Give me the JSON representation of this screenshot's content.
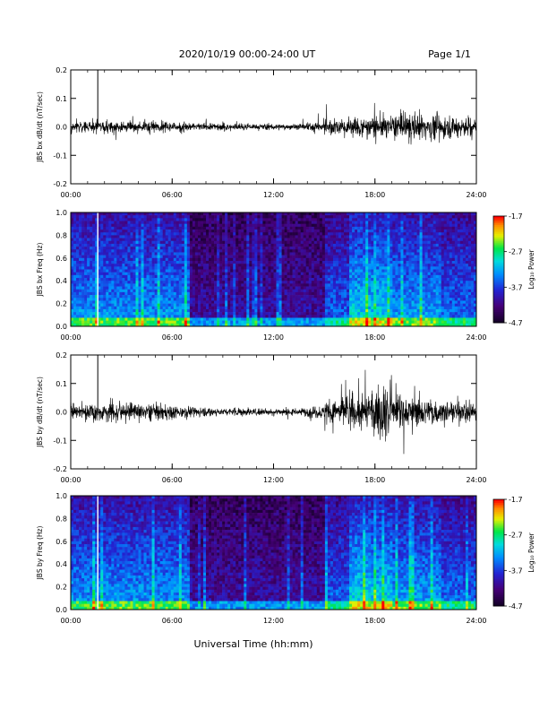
{
  "header": {
    "title": "2020/10/19  00:00-24:00 UT",
    "page": "Page 1/1"
  },
  "xlabel": "Universal Time (hh:mm)",
  "chart_data": [
    {
      "type": "line",
      "ylabel": "JBS bx dB/dt (nT/sec)",
      "xlim": [
        0,
        24
      ],
      "ylim": [
        -0.2,
        0.2
      ],
      "x_ticks": [
        "00:00",
        "06:00",
        "12:00",
        "18:00",
        "24:00"
      ],
      "y_ticks": [
        "0.2",
        "0.1",
        "0.0",
        "-0.1",
        "-0.2"
      ],
      "spike_hour": 1.6,
      "amplitude_by_hour": [
        0.018,
        0.02,
        0.022,
        0.018,
        0.022,
        0.018,
        0.016,
        0.013,
        0.013,
        0.012,
        0.011,
        0.01,
        0.01,
        0.01,
        0.015,
        0.025,
        0.03,
        0.035,
        0.04,
        0.04,
        0.045,
        0.04,
        0.035,
        0.035
      ]
    },
    {
      "type": "heatmap",
      "ylabel": "JBS bx Freq (Hz)",
      "xlim": [
        0,
        24
      ],
      "ylim": [
        0,
        1.0
      ],
      "x_ticks": [
        "00:00",
        "06:00",
        "12:00",
        "18:00",
        "24:00"
      ],
      "y_ticks": [
        "1.0",
        "0.8",
        "0.6",
        "0.4",
        "0.2",
        "0.0"
      ],
      "colorbar": {
        "label": "Log₁₀ Power",
        "ticks": [
          "-1.7",
          "-2.7",
          "-3.7",
          "-4.7"
        ],
        "range": [
          -4.7,
          -1.7
        ]
      },
      "spike_hour": 1.6
    },
    {
      "type": "line",
      "ylabel": "JBS by dB/dt (nT/sec)",
      "xlim": [
        0,
        24
      ],
      "ylim": [
        -0.2,
        0.2
      ],
      "x_ticks": [
        "00:00",
        "06:00",
        "12:00",
        "18:00",
        "24:00"
      ],
      "y_ticks": [
        "0.2",
        "0.1",
        "0.0",
        "-0.1",
        "-0.2"
      ],
      "spike_hour": 1.6,
      "amplitude_by_hour": [
        0.03,
        0.03,
        0.035,
        0.03,
        0.03,
        0.025,
        0.02,
        0.015,
        0.015,
        0.013,
        0.012,
        0.012,
        0.012,
        0.012,
        0.02,
        0.045,
        0.06,
        0.07,
        0.08,
        0.065,
        0.05,
        0.045,
        0.04,
        0.035
      ]
    },
    {
      "type": "heatmap",
      "ylabel": "JBS by Freq (Hz)",
      "xlim": [
        0,
        24
      ],
      "ylim": [
        0,
        1.0
      ],
      "x_ticks": [
        "00:00",
        "06:00",
        "12:00",
        "18:00",
        "24:00"
      ],
      "y_ticks": [
        "1.0",
        "0.8",
        "0.6",
        "0.4",
        "0.2",
        "0.0"
      ],
      "colorbar": {
        "label": "Log₁₀ Power",
        "ticks": [
          "-1.7",
          "-2.7",
          "-3.7",
          "-4.7"
        ],
        "range": [
          -4.7,
          -1.7
        ]
      },
      "spike_hour": 1.6
    }
  ]
}
